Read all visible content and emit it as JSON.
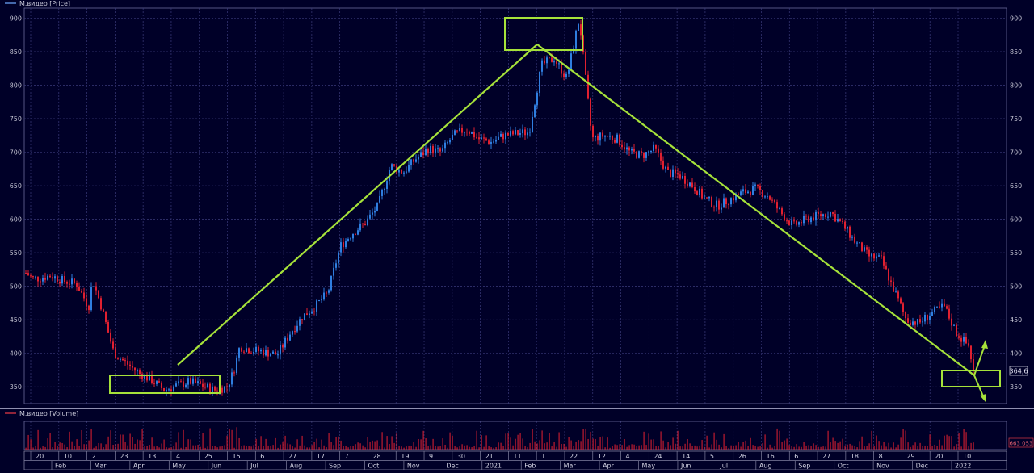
{
  "chart_data": [
    {
      "type": "candlestick",
      "legend": "М.видео [Price]",
      "y_ticks": [
        350,
        400,
        450,
        500,
        550,
        600,
        650,
        700,
        750,
        800,
        850,
        900
      ],
      "ylim": [
        325,
        915
      ],
      "last_price_label": "364,6",
      "grid": true,
      "colors": {
        "up": "#2f7ee0",
        "down": "#e02030",
        "grid": "#3a3a7a",
        "background": "#000028",
        "annotation": "#a6e23a"
      },
      "price_path": [
        [
          0,
          520
        ],
        [
          0.5,
          512
        ],
        [
          1,
          512
        ],
        [
          2,
          516
        ],
        [
          3,
          508
        ],
        [
          4,
          504
        ],
        [
          5,
          470
        ],
        [
          5.3,
          510
        ],
        [
          6,
          470
        ],
        [
          7,
          400
        ],
        [
          8,
          385
        ],
        [
          9,
          370
        ],
        [
          10,
          360
        ],
        [
          11,
          345
        ],
        [
          12,
          352
        ],
        [
          13,
          358
        ],
        [
          14,
          352
        ],
        [
          15,
          345
        ],
        [
          16,
          350
        ],
        [
          16.5,
          372
        ],
        [
          17,
          410
        ],
        [
          18,
          405
        ],
        [
          19,
          402
        ],
        [
          20,
          398
        ],
        [
          21,
          430
        ],
        [
          22,
          455
        ],
        [
          23,
          470
        ],
        [
          24,
          490
        ],
        [
          25,
          560
        ],
        [
          26,
          580
        ],
        [
          27,
          595
        ],
        [
          28,
          620
        ],
        [
          29,
          680
        ],
        [
          30,
          670
        ],
        [
          31,
          690
        ],
        [
          32,
          705
        ],
        [
          33,
          700
        ],
        [
          34,
          725
        ],
        [
          35,
          735
        ],
        [
          36,
          720
        ],
        [
          37,
          715
        ],
        [
          38,
          725
        ],
        [
          39,
          728
        ],
        [
          40,
          730
        ],
        [
          41,
          830
        ],
        [
          42,
          840
        ],
        [
          43,
          810
        ],
        [
          44,
          900
        ],
        [
          45,
          720
        ],
        [
          46,
          725
        ],
        [
          47,
          720
        ],
        [
          48,
          700
        ],
        [
          49,
          695
        ],
        [
          50,
          705
        ],
        [
          51,
          670
        ],
        [
          52,
          665
        ],
        [
          53,
          650
        ],
        [
          54,
          630
        ],
        [
          55,
          620
        ],
        [
          56,
          630
        ],
        [
          57,
          640
        ],
        [
          58,
          645
        ],
        [
          59,
          635
        ],
        [
          60,
          610
        ],
        [
          61,
          590
        ],
        [
          62,
          600
        ],
        [
          63,
          605
        ],
        [
          64,
          610
        ],
        [
          65,
          590
        ],
        [
          66,
          565
        ],
        [
          67,
          545
        ],
        [
          68,
          540
        ],
        [
          69,
          495
        ],
        [
          70,
          450
        ],
        [
          71,
          445
        ],
        [
          72,
          460
        ],
        [
          73,
          470
        ],
        [
          74,
          430
        ],
        [
          75,
          410
        ],
        [
          75.4,
          364.6
        ]
      ],
      "volume": {
        "legend": "М.видео [Volume]",
        "last_value_label": "663 053"
      },
      "x_axis": {
        "ticks": [
          "20",
          "10",
          "2",
          "23",
          "13",
          "4",
          "25",
          "15",
          "6",
          "27",
          "17",
          "7",
          "28",
          "19",
          "9",
          "30",
          "21",
          "11",
          "1",
          "22",
          "12",
          "4",
          "24",
          "14",
          "5",
          "26",
          "16",
          "6",
          "27",
          "18",
          "8",
          "29",
          "20",
          "10"
        ],
        "months": [
          "Feb",
          "Mar",
          "Apr",
          "May",
          "Jun",
          "Jul",
          "Aug",
          "Sep",
          "Oct",
          "Nov",
          "Dec",
          "2021",
          "Feb",
          "Mar",
          "Apr",
          "May",
          "Jun",
          "Jul",
          "Aug",
          "Sep",
          "Oct",
          "Nov",
          "Dec",
          "2022"
        ]
      }
    }
  ]
}
